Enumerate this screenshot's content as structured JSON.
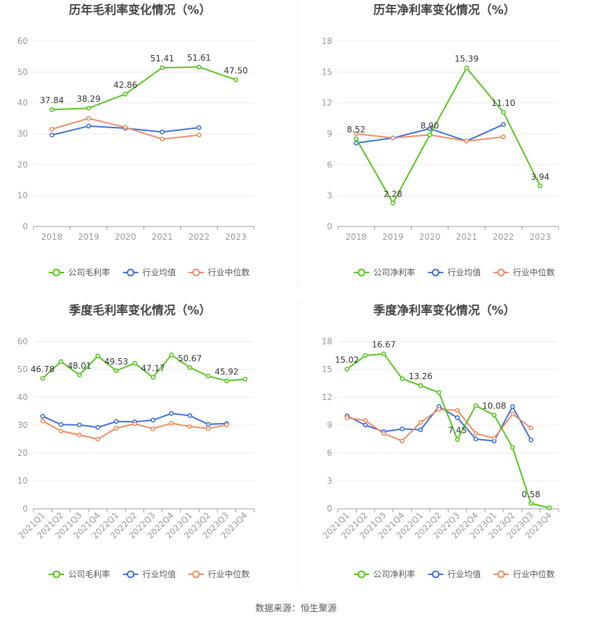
{
  "footer": {
    "source": "数据来源：恒生聚源"
  },
  "colors": {
    "company": "#52c41a",
    "avg": "#3a6fd8",
    "median": "#f08a5d",
    "grid": "#e8e8e8",
    "axis": "#999999",
    "title": "#444444"
  },
  "chart_data": [
    {
      "type": "line",
      "title": "历年毛利率变化情况（%）",
      "categories": [
        "2018",
        "2019",
        "2020",
        "2021",
        "2022",
        "2023"
      ],
      "ylim": [
        0,
        60
      ],
      "yticks": [
        0,
        10,
        20,
        30,
        40,
        50,
        60
      ],
      "grid": true,
      "legend_position": "bottom",
      "series": [
        {
          "name": "公司毛利率",
          "color": "#52c41a",
          "values": [
            37.84,
            38.29,
            42.86,
            51.41,
            51.61,
            47.5
          ],
          "labels": [
            "37.84",
            "38.29",
            "42.86",
            "51.41",
            "51.61",
            "47.50"
          ]
        },
        {
          "name": "行业均值",
          "color": "#3a6fd8",
          "values": [
            29.6,
            32.5,
            31.8,
            30.6,
            32.0,
            null
          ]
        },
        {
          "name": "行业中位数",
          "color": "#f08a5d",
          "values": [
            31.5,
            35.0,
            32.1,
            28.3,
            29.6,
            null
          ]
        }
      ]
    },
    {
      "type": "line",
      "title": "历年净利率变化情况（%）",
      "categories": [
        "2018",
        "2019",
        "2020",
        "2021",
        "2022",
        "2023"
      ],
      "ylim": [
        0,
        18
      ],
      "yticks": [
        0,
        3,
        6,
        9,
        12,
        15,
        18
      ],
      "grid": true,
      "legend_position": "bottom",
      "series": [
        {
          "name": "公司净利率",
          "color": "#52c41a",
          "values": [
            8.52,
            2.28,
            8.9,
            15.39,
            11.1,
            3.94
          ],
          "labels": [
            "8.52",
            "2.28",
            "8.90",
            "15.39",
            "11.10",
            "3.94"
          ]
        },
        {
          "name": "行业均值",
          "color": "#3a6fd8",
          "values": [
            8.1,
            8.6,
            9.5,
            8.3,
            9.9,
            null
          ]
        },
        {
          "name": "行业中位数",
          "color": "#f08a5d",
          "values": [
            9.0,
            8.6,
            8.9,
            8.3,
            8.7,
            null
          ]
        }
      ]
    },
    {
      "type": "line",
      "title": "季度毛利率变化情况（%）",
      "categories": [
        "2021Q1",
        "2021Q2",
        "2021Q3",
        "2021Q4",
        "2022Q1",
        "2022Q2",
        "2022Q3",
        "2022Q4",
        "2023Q1",
        "2023Q2",
        "2023Q3",
        "2023Q4"
      ],
      "ylim": [
        0,
        60
      ],
      "yticks": [
        0,
        10,
        20,
        30,
        40,
        50,
        60
      ],
      "grid": true,
      "legend_position": "bottom",
      "series": [
        {
          "name": "公司毛利率",
          "color": "#52c41a",
          "values": [
            46.78,
            52.8,
            48.01,
            54.8,
            49.53,
            52.2,
            47.17,
            55.2,
            50.67,
            47.6,
            45.92,
            46.5
          ],
          "labels": [
            "46.78",
            null,
            "48.01",
            null,
            "49.53",
            null,
            "47.17",
            null,
            "50.67",
            null,
            "45.92",
            null
          ]
        },
        {
          "name": "行业均值",
          "color": "#3a6fd8",
          "values": [
            33.2,
            30.2,
            30.1,
            29.2,
            31.3,
            31.2,
            31.8,
            34.2,
            33.4,
            30.3,
            30.6,
            null
          ]
        },
        {
          "name": "行业中位数",
          "color": "#f08a5d",
          "values": [
            31.5,
            27.9,
            26.5,
            25.0,
            28.9,
            30.5,
            28.7,
            30.7,
            29.5,
            28.8,
            30.1,
            null
          ]
        }
      ]
    },
    {
      "type": "line",
      "title": "季度净利率变化情况（%）",
      "categories": [
        "2021Q1",
        "2021Q2",
        "2021Q3",
        "2021Q4",
        "2022Q1",
        "2022Q2",
        "2022Q3",
        "2022Q4",
        "2023Q1",
        "2023Q2",
        "2023Q3",
        "2023Q4"
      ],
      "ylim": [
        0,
        18
      ],
      "yticks": [
        0,
        3,
        6,
        9,
        12,
        15,
        18
      ],
      "grid": true,
      "legend_position": "bottom",
      "series": [
        {
          "name": "公司净利率",
          "color": "#52c41a",
          "values": [
            15.02,
            16.5,
            16.67,
            14.0,
            13.26,
            12.5,
            7.45,
            11.1,
            10.08,
            6.6,
            0.58,
            0.1
          ],
          "labels": [
            "15.02",
            null,
            "16.67",
            null,
            "13.26",
            null,
            "7.45",
            null,
            "10.08",
            null,
            "0.58",
            null
          ]
        },
        {
          "name": "行业均值",
          "color": "#3a6fd8",
          "values": [
            10.0,
            9.0,
            8.3,
            8.6,
            8.5,
            11.0,
            9.8,
            7.5,
            7.3,
            11.0,
            7.4,
            null
          ]
        },
        {
          "name": "行业中位数",
          "color": "#f08a5d",
          "values": [
            9.8,
            9.5,
            8.1,
            7.3,
            9.3,
            10.7,
            10.6,
            8.1,
            7.6,
            10.2,
            8.7,
            null
          ]
        }
      ]
    }
  ]
}
